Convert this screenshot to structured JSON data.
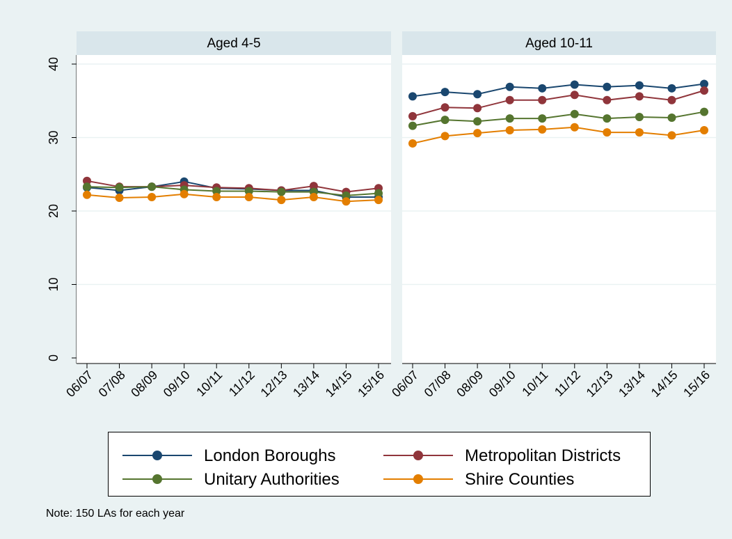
{
  "chart_data": {
    "type": "line",
    "categories": [
      "06/07",
      "07/08",
      "08/09",
      "09/10",
      "10/11",
      "11/12",
      "12/13",
      "13/14",
      "14/15",
      "15/16"
    ],
    "ylim": [
      0,
      40
    ],
    "yticks": [
      "0",
      "10",
      "20",
      "30",
      "40"
    ],
    "grid": true,
    "legend_position": "bottom",
    "series_meta": [
      {
        "name": "London Boroughs",
        "color": "#1a476f"
      },
      {
        "name": "Metropolitan Districts",
        "color": "#90353b"
      },
      {
        "name": "Unitary Authorities",
        "color": "#55752f"
      },
      {
        "name": "Shire Counties",
        "color": "#e37e00"
      }
    ],
    "panels": [
      {
        "title": "Aged 4-5",
        "series": [
          {
            "name": "London Boroughs",
            "values": [
              23.2,
              22.8,
              23.3,
              24.0,
              23.1,
              23.0,
              22.8,
              22.8,
              21.9,
              21.9
            ]
          },
          {
            "name": "Metropolitan Districts",
            "values": [
              24.1,
              23.3,
              23.3,
              23.5,
              23.2,
              23.1,
              22.8,
              23.4,
              22.6,
              23.1
            ]
          },
          {
            "name": "Unitary Authorities",
            "values": [
              23.3,
              23.2,
              23.3,
              22.9,
              22.7,
              22.7,
              22.6,
              22.6,
              22.1,
              22.4
            ]
          },
          {
            "name": "Shire Counties",
            "values": [
              22.2,
              21.8,
              21.9,
              22.3,
              21.9,
              21.9,
              21.5,
              21.9,
              21.3,
              21.5
            ]
          }
        ]
      },
      {
        "title": "Aged 10-11",
        "series": [
          {
            "name": "London Boroughs",
            "values": [
              35.6,
              36.2,
              35.9,
              36.9,
              36.7,
              37.2,
              36.9,
              37.1,
              36.7,
              37.3
            ]
          },
          {
            "name": "Metropolitan Districts",
            "values": [
              32.9,
              34.1,
              34.0,
              35.1,
              35.1,
              35.8,
              35.1,
              35.6,
              35.1,
              36.4
            ]
          },
          {
            "name": "Unitary Authorities",
            "values": [
              31.6,
              32.4,
              32.2,
              32.6,
              32.6,
              33.2,
              32.6,
              32.8,
              32.7,
              33.5
            ]
          },
          {
            "name": "Shire Counties",
            "values": [
              29.2,
              30.2,
              30.6,
              31.0,
              31.1,
              31.4,
              30.7,
              30.7,
              30.3,
              31.0
            ]
          }
        ]
      }
    ],
    "note": "Note: 150 LAs for each year"
  }
}
